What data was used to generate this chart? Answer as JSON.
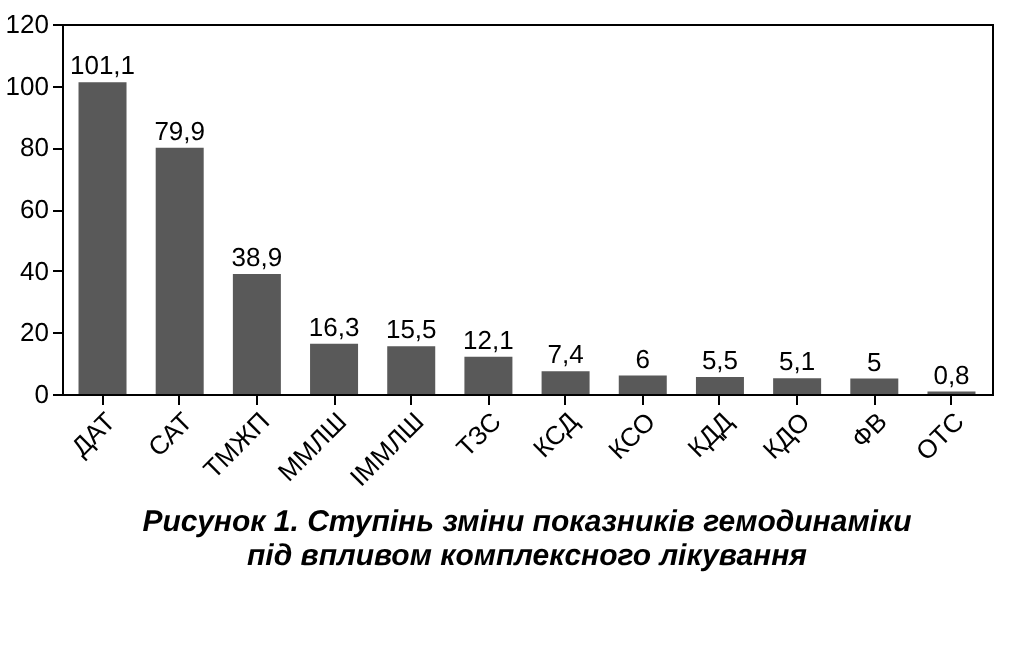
{
  "chart_data": {
    "type": "bar",
    "title": "Рисунок 1.  Ступінь зміни показників гемодинаміки під впливом комплексного лікування",
    "categories": [
      "ДАТ",
      "САТ",
      "ТМЖП",
      "ММЛШ",
      "ІММЛШ",
      "ТЗС",
      "КСД",
      "КСО",
      "КДД",
      "КДО",
      "ФВ",
      "ОТС"
    ],
    "values": [
      101.1,
      79.9,
      38.9,
      16.3,
      15.5,
      12.1,
      7.4,
      6,
      5.5,
      5.1,
      5,
      0.8
    ],
    "value_labels": [
      "101,1",
      "79,9",
      "38,9",
      "16,3",
      "15,5",
      "12,1",
      "7,4",
      "6",
      "5,5",
      "5,1",
      "5",
      "0,8"
    ],
    "color": "#595959",
    "ylim": [
      0,
      120
    ],
    "yticks": [
      0,
      20,
      40,
      60,
      80,
      100,
      120
    ],
    "grid": false
  }
}
